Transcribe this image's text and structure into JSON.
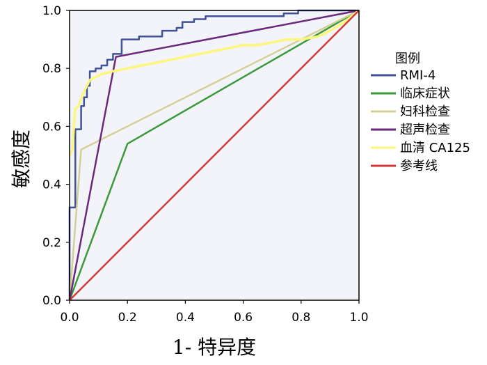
{
  "chart_data": {
    "type": "line",
    "xlabel": "1- 特异度",
    "ylabel": "敏感度",
    "xlim": [
      0,
      1
    ],
    "ylim": [
      0,
      1
    ],
    "xticks": [
      "0.0",
      "0.2",
      "0.4",
      "0.6",
      "0.8",
      "1.0"
    ],
    "yticks": [
      "0.0",
      "0.2",
      "0.4",
      "0.6",
      "0.8",
      "1.0"
    ],
    "grid": false,
    "legend": {
      "title": "图例",
      "position": "right"
    },
    "series": [
      {
        "name": "RMI-4",
        "color": "#3f5297",
        "points": [
          [
            0,
            0
          ],
          [
            0,
            0.32
          ],
          [
            0.02,
            0.32
          ],
          [
            0.02,
            0.59
          ],
          [
            0.04,
            0.59
          ],
          [
            0.04,
            0.67
          ],
          [
            0.05,
            0.67
          ],
          [
            0.05,
            0.7
          ],
          [
            0.06,
            0.7
          ],
          [
            0.06,
            0.74
          ],
          [
            0.07,
            0.74
          ],
          [
            0.07,
            0.79
          ],
          [
            0.09,
            0.79
          ],
          [
            0.09,
            0.8
          ],
          [
            0.11,
            0.8
          ],
          [
            0.11,
            0.81
          ],
          [
            0.13,
            0.81
          ],
          [
            0.13,
            0.83
          ],
          [
            0.15,
            0.83
          ],
          [
            0.15,
            0.85
          ],
          [
            0.18,
            0.85
          ],
          [
            0.18,
            0.9
          ],
          [
            0.24,
            0.9
          ],
          [
            0.24,
            0.91
          ],
          [
            0.32,
            0.91
          ],
          [
            0.32,
            0.93
          ],
          [
            0.37,
            0.93
          ],
          [
            0.37,
            0.94
          ],
          [
            0.39,
            0.94
          ],
          [
            0.39,
            0.96
          ],
          [
            0.43,
            0.96
          ],
          [
            0.43,
            0.97
          ],
          [
            0.47,
            0.97
          ],
          [
            0.47,
            0.98
          ],
          [
            0.74,
            0.98
          ],
          [
            0.74,
            0.99
          ],
          [
            0.79,
            0.99
          ],
          [
            0.79,
            1.0
          ],
          [
            1,
            1
          ]
        ]
      },
      {
        "name": "临床症状",
        "color": "#3a9a3a",
        "points": [
          [
            0,
            0
          ],
          [
            0.2,
            0.54
          ],
          [
            1,
            1
          ]
        ]
      },
      {
        "name": "妇科检查",
        "color": "#d4cf95",
        "points": [
          [
            0,
            0
          ],
          [
            0.04,
            0.52
          ],
          [
            1,
            1
          ]
        ]
      },
      {
        "name": "超声检查",
        "color": "#6a2a7a",
        "points": [
          [
            0,
            0
          ],
          [
            0.16,
            0.84
          ],
          [
            1,
            1
          ]
        ]
      },
      {
        "name": "血清 CA125",
        "color": "#fdf67c",
        "points": [
          [
            0,
            0.5
          ],
          [
            0.01,
            0.52
          ],
          [
            0.015,
            0.6
          ],
          [
            0.02,
            0.66
          ],
          [
            0.03,
            0.67
          ],
          [
            0.05,
            0.72
          ],
          [
            0.07,
            0.76
          ],
          [
            0.09,
            0.77
          ],
          [
            0.11,
            0.78
          ],
          [
            0.15,
            0.79
          ],
          [
            0.2,
            0.8
          ],
          [
            0.25,
            0.81
          ],
          [
            0.3,
            0.82
          ],
          [
            0.35,
            0.83
          ],
          [
            0.4,
            0.84
          ],
          [
            0.45,
            0.85
          ],
          [
            0.5,
            0.86
          ],
          [
            0.55,
            0.87
          ],
          [
            0.6,
            0.88
          ],
          [
            0.65,
            0.88
          ],
          [
            0.7,
            0.89
          ],
          [
            0.75,
            0.9
          ],
          [
            0.8,
            0.9
          ],
          [
            0.86,
            0.91
          ],
          [
            0.9,
            0.93
          ],
          [
            0.95,
            0.96
          ],
          [
            1,
            1
          ]
        ]
      },
      {
        "name": "参考线",
        "color": "#d03a3a",
        "points": [
          [
            0,
            0
          ],
          [
            1,
            1
          ]
        ]
      }
    ]
  },
  "colors": {
    "plot_background": "#f3f3fa",
    "axis": "#000000"
  }
}
